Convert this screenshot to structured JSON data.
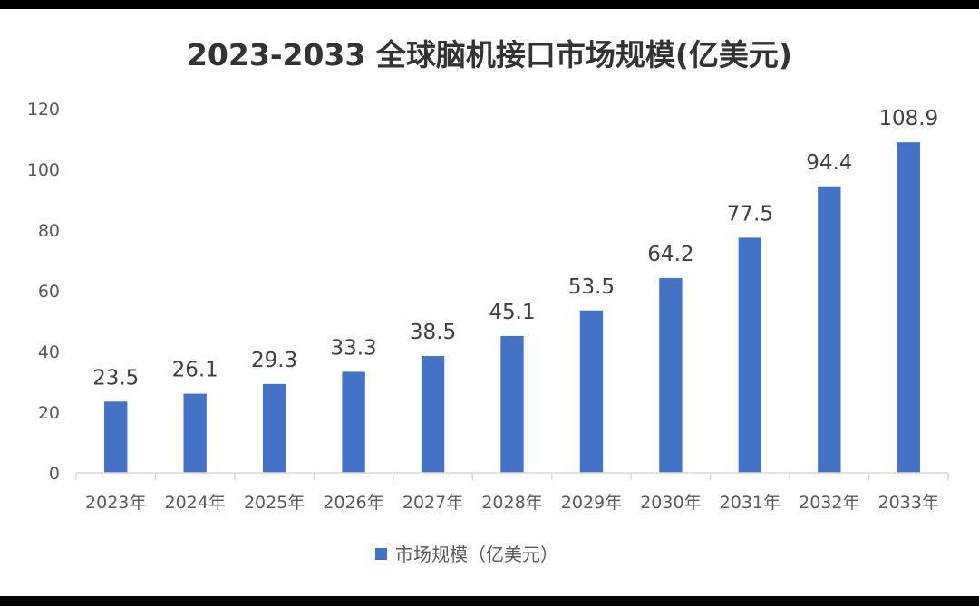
{
  "chart_data": {
    "type": "bar",
    "title": "2023-2033 全球脑机接口市场规模(亿美元)",
    "categories": [
      "2023年",
      "2024年",
      "2025年",
      "2026年",
      "2027年",
      "2028年",
      "2029年",
      "2030年",
      "2031年",
      "2032年",
      "2033年"
    ],
    "series": [
      {
        "name": "市场规模（亿美元）",
        "values": [
          23.5,
          26.1,
          29.3,
          33.3,
          38.5,
          45.1,
          53.5,
          64.2,
          77.5,
          94.4,
          108.9
        ],
        "color": "#4472C4"
      }
    ],
    "data_labels": [
      "23.5",
      "26.1",
      "29.3",
      "33.3",
      "38.5",
      "45.1",
      "53.5",
      "64.2",
      "77.5",
      "94.4",
      "108.9"
    ],
    "y_ticks": [
      "0",
      "20",
      "40",
      "60",
      "80",
      "100",
      "120"
    ],
    "ylim": [
      0,
      120
    ],
    "xlabel": "",
    "ylabel": "",
    "grid": false,
    "legend_position": "bottom",
    "colors": {
      "bar": "#4472C4",
      "axis": "#D9D9D9",
      "title": "#333333",
      "tick": "#595959",
      "label": "#404040",
      "background": "#FFFFFF",
      "border": "#000000"
    }
  }
}
